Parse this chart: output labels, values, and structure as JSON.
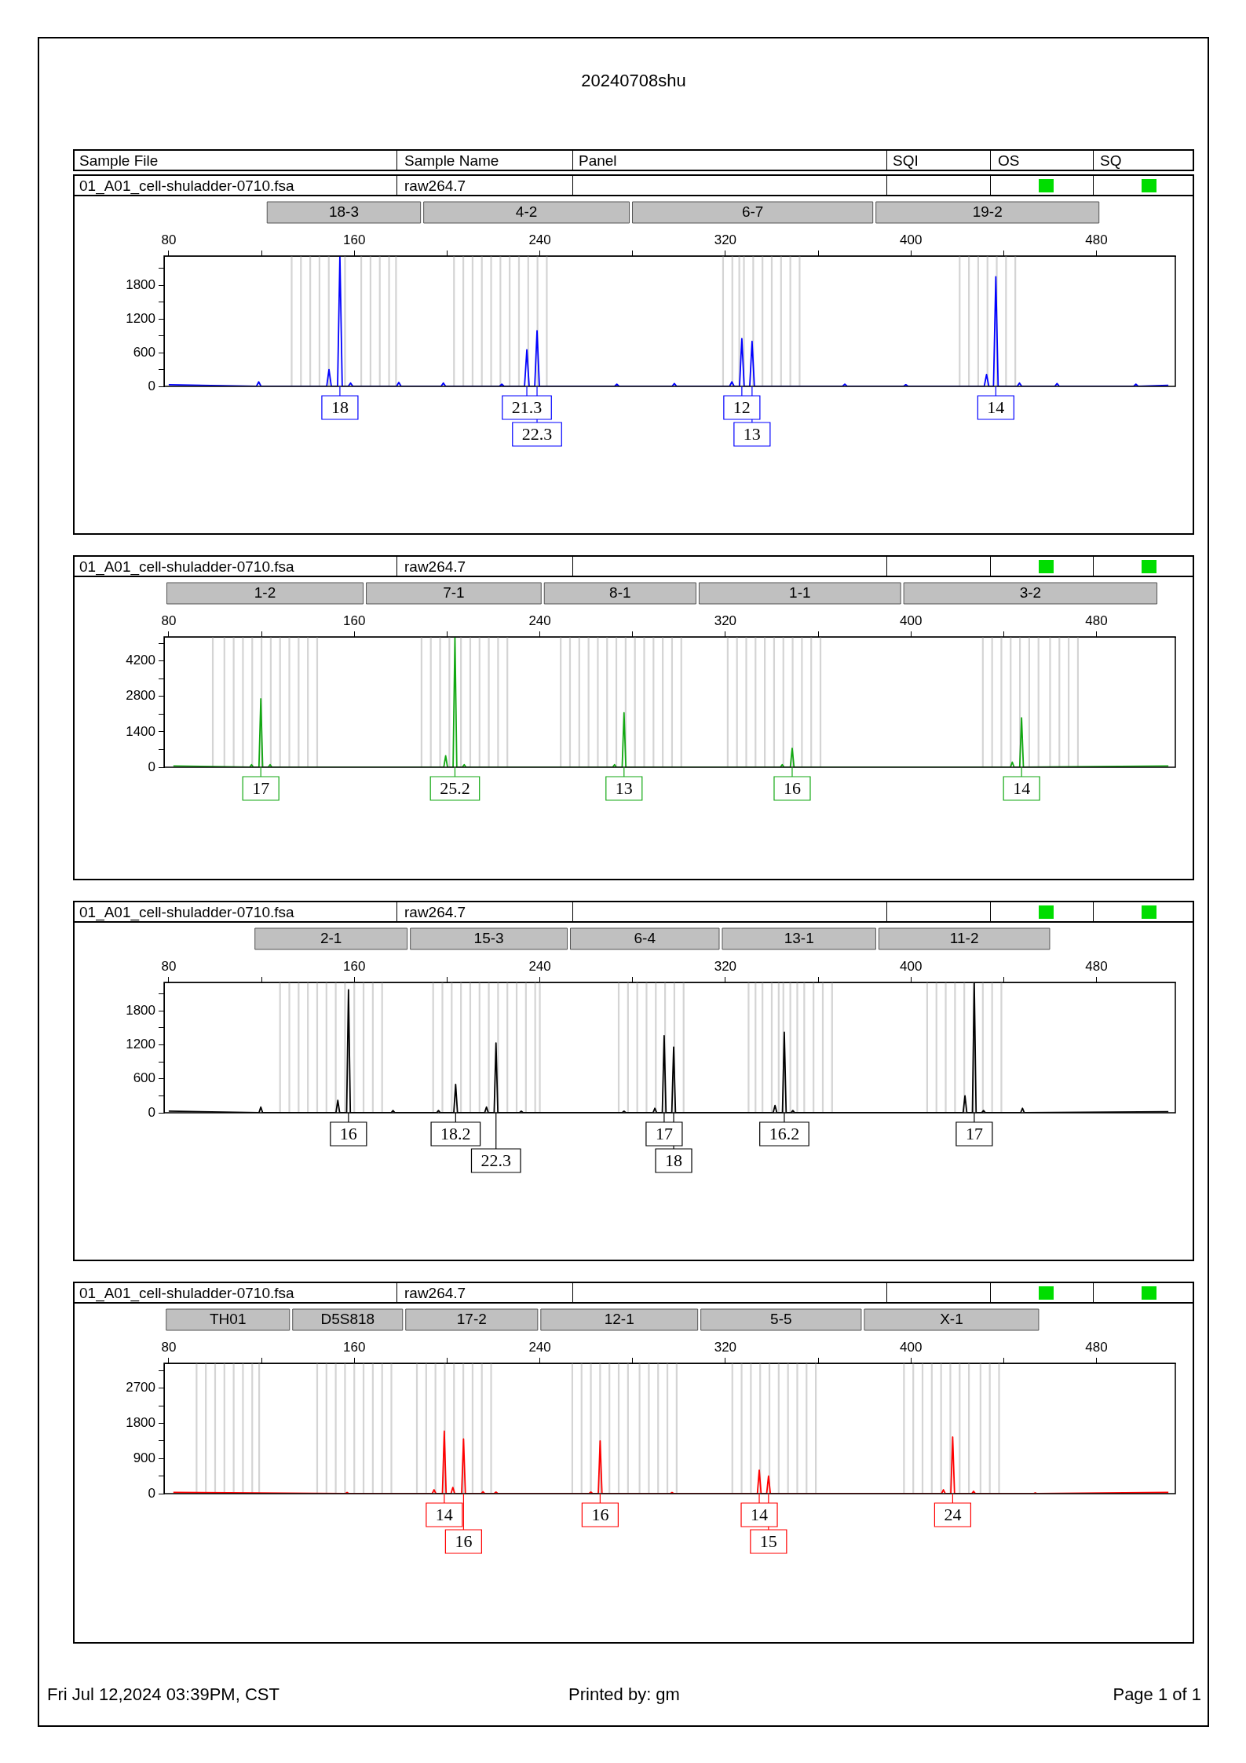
{
  "chart_data": [
    {
      "type": "other",
      "title": "20240708shu",
      "annotations": [
        "Sample File",
        "Sample Name",
        "Panel",
        "SQI",
        "OS",
        "SQ"
      ]
    },
    {
      "type": "line",
      "xlim": [
        78,
        514
      ],
      "ylim": [
        0,
        2320
      ],
      "xticks": [
        80,
        {
          "value": 120,
          "label": null
        },
        160,
        {
          "value": 200,
          "label": null
        },
        240,
        {
          "value": 280,
          "label": null
        },
        320,
        {
          "value": 360,
          "label": null
        },
        400,
        {
          "value": 440,
          "label": null
        },
        480
      ],
      "yticks": [
        0,
        {
          "value": 300,
          "label": null
        },
        600,
        {
          "value": 900,
          "label": null
        },
        1200,
        {
          "value": 1500,
          "label": null
        },
        1800,
        {
          "value": 2100,
          "label": null
        }
      ],
      "series": [
        {
          "color": "#0000ff",
          "x": [
            80,
            117.8,
            118.8,
            119.8,
            148.1,
            149.1,
            150.1,
            152.8,
            153.8,
            154.8,
            157.4,
            158.4,
            159.4,
            178.2,
            179.2,
            180.2,
            197.4,
            198.4,
            199.4,
            222.6,
            223.6,
            224.6,
            233.4,
            234.4,
            235.4,
            237.8,
            238.8,
            239.8,
            272.2,
            273.2,
            274.2,
            297,
            298,
            299,
            321.8,
            322.8,
            323.8,
            326.1,
            327.1,
            328.1,
            330.5,
            331.5,
            332.5,
            370.5,
            371.5,
            372.5,
            396.8,
            397.8,
            398.8,
            431.6,
            432.6,
            433.6,
            435.6,
            436.6,
            437.6,
            445.8,
            446.8,
            447.8,
            462,
            463,
            464,
            496,
            497,
            498,
            511
          ],
          "values": [
            30,
            0,
            80,
            0,
            0,
            300,
            0,
            0,
            2320,
            0,
            0,
            60,
            0,
            0,
            70,
            0,
            0,
            60,
            0,
            0,
            40,
            0,
            0,
            650,
            0,
            0,
            990,
            0,
            0,
            40,
            0,
            0,
            50,
            0,
            0,
            80,
            0,
            0,
            850,
            0,
            0,
            800,
            0,
            0,
            40,
            0,
            0,
            30,
            0,
            0,
            210,
            0,
            0,
            1950,
            0,
            0,
            60,
            0,
            0,
            50,
            0,
            0,
            40,
            0,
            20
          ]
        }
      ],
      "ref_lines": [
        {
          "axis": "x",
          "value": 133
        },
        {
          "axis": "x",
          "value": 137
        },
        {
          "axis": "x",
          "value": 141
        },
        {
          "axis": "x",
          "value": 145
        },
        {
          "axis": "x",
          "value": 149
        },
        {
          "axis": "x",
          "value": 156
        },
        {
          "axis": "x",
          "value": 163
        },
        {
          "axis": "x",
          "value": 167
        },
        {
          "axis": "x",
          "value": 171
        },
        {
          "axis": "x",
          "value": 175
        },
        {
          "axis": "x",
          "value": 178
        },
        {
          "axis": "x",
          "value": 203
        },
        {
          "axis": "x",
          "value": 207
        },
        {
          "axis": "x",
          "value": 211
        },
        {
          "axis": "x",
          "value": 215
        },
        {
          "axis": "x",
          "value": 219
        },
        {
          "axis": "x",
          "value": 223
        },
        {
          "axis": "x",
          "value": 227
        },
        {
          "axis": "x",
          "value": 231
        },
        {
          "axis": "x",
          "value": 235
        },
        {
          "axis": "x",
          "value": 239
        },
        {
          "axis": "x",
          "value": 243
        },
        {
          "axis": "x",
          "value": 319
        },
        {
          "axis": "x",
          "value": 323
        },
        {
          "axis": "x",
          "value": 326
        },
        {
          "axis": "x",
          "value": 328
        },
        {
          "axis": "x",
          "value": 332
        },
        {
          "axis": "x",
          "value": 336
        },
        {
          "axis": "x",
          "value": 340
        },
        {
          "axis": "x",
          "value": 344
        },
        {
          "axis": "x",
          "value": 348
        },
        {
          "axis": "x",
          "value": 352
        },
        {
          "axis": "x",
          "value": 421
        },
        {
          "axis": "x",
          "value": 425
        },
        {
          "axis": "x",
          "value": 429
        },
        {
          "axis": "x",
          "value": 433
        },
        {
          "axis": "x",
          "value": 437
        },
        {
          "axis": "x",
          "value": 441
        },
        {
          "axis": "x",
          "value": 445
        }
      ],
      "annotations": [
        "01_A01_cell-shuladder-0710.fsa",
        "raw264.7",
        "18-3",
        "4-2",
        "6-7",
        "19-2",
        {
          "text": "18",
          "x": 153.8
        },
        {
          "text": "21.3",
          "x": 234.4
        },
        {
          "text": "22.3",
          "x": 238.8
        },
        {
          "text": "12",
          "x": 327.1
        },
        {
          "text": "13",
          "x": 331.5
        },
        {
          "text": "14",
          "x": 436.6
        }
      ]
    },
    {
      "type": "line",
      "xlim": [
        78,
        514
      ],
      "ylim": [
        0,
        5150
      ],
      "xticks": [
        80,
        {
          "value": 120,
          "label": null
        },
        160,
        {
          "value": 200,
          "label": null
        },
        240,
        {
          "value": 280,
          "label": null
        },
        320,
        {
          "value": 360,
          "label": null
        },
        400,
        {
          "value": 440,
          "label": null
        },
        480
      ],
      "yticks": [
        0,
        {
          "value": 700,
          "label": null
        },
        1400,
        {
          "value": 2100,
          "label": null
        },
        2800,
        {
          "value": 3500,
          "label": null
        },
        4200,
        {
          "value": 4900,
          "label": null
        }
      ],
      "series": [
        {
          "color": "#12a812",
          "x": [
            82,
            114.9,
            115.7,
            116.5,
            118.9,
            119.7,
            120.5,
            122.9,
            123.7,
            124.5,
            198.6,
            199.4,
            200.2,
            202.6,
            203.4,
            204.2,
            206.6,
            207.4,
            208.2,
            271.4,
            272.2,
            273,
            275.5,
            276.3,
            277.1,
            343.7,
            344.5,
            345.3,
            348,
            348.8,
            349.6,
            442.9,
            443.7,
            444.5,
            446.9,
            447.7,
            448.5,
            511
          ],
          "values": [
            50,
            0,
            100,
            0,
            0,
            2700,
            0,
            0,
            100,
            0,
            0,
            450,
            0,
            0,
            5150,
            0,
            0,
            100,
            0,
            0,
            100,
            0,
            0,
            2150,
            0,
            0,
            100,
            0,
            0,
            750,
            0,
            0,
            200,
            0,
            0,
            1950,
            0,
            50
          ]
        }
      ],
      "ref_lines": [
        {
          "axis": "x",
          "value": 99
        },
        {
          "axis": "x",
          "value": 104
        },
        {
          "axis": "x",
          "value": 108
        },
        {
          "axis": "x",
          "value": 112
        },
        {
          "axis": "x",
          "value": 116
        },
        {
          "axis": "x",
          "value": 120
        },
        {
          "axis": "x",
          "value": 124
        },
        {
          "axis": "x",
          "value": 128
        },
        {
          "axis": "x",
          "value": 132
        },
        {
          "axis": "x",
          "value": 136
        },
        {
          "axis": "x",
          "value": 140
        },
        {
          "axis": "x",
          "value": 144
        },
        {
          "axis": "x",
          "value": 189
        },
        {
          "axis": "x",
          "value": 193
        },
        {
          "axis": "x",
          "value": 197
        },
        {
          "axis": "x",
          "value": 201
        },
        {
          "axis": "x",
          "value": 206
        },
        {
          "axis": "x",
          "value": 210
        },
        {
          "axis": "x",
          "value": 214
        },
        {
          "axis": "x",
          "value": 218
        },
        {
          "axis": "x",
          "value": 222
        },
        {
          "axis": "x",
          "value": 226
        },
        {
          "axis": "x",
          "value": 249
        },
        {
          "axis": "x",
          "value": 253
        },
        {
          "axis": "x",
          "value": 257
        },
        {
          "axis": "x",
          "value": 261
        },
        {
          "axis": "x",
          "value": 265
        },
        {
          "axis": "x",
          "value": 269
        },
        {
          "axis": "x",
          "value": 273
        },
        {
          "axis": "x",
          "value": 277
        },
        {
          "axis": "x",
          "value": 281
        },
        {
          "axis": "x",
          "value": 285
        },
        {
          "axis": "x",
          "value": 289
        },
        {
          "axis": "x",
          "value": 293
        },
        {
          "axis": "x",
          "value": 297
        },
        {
          "axis": "x",
          "value": 301
        },
        {
          "axis": "x",
          "value": 321
        },
        {
          "axis": "x",
          "value": 325
        },
        {
          "axis": "x",
          "value": 329
        },
        {
          "axis": "x",
          "value": 333
        },
        {
          "axis": "x",
          "value": 337
        },
        {
          "axis": "x",
          "value": 341
        },
        {
          "axis": "x",
          "value": 345
        },
        {
          "axis": "x",
          "value": 349
        },
        {
          "axis": "x",
          "value": 353
        },
        {
          "axis": "x",
          "value": 357
        },
        {
          "axis": "x",
          "value": 361
        },
        {
          "axis": "x",
          "value": 431
        },
        {
          "axis": "x",
          "value": 435
        },
        {
          "axis": "x",
          "value": 439
        },
        {
          "axis": "x",
          "value": 443
        },
        {
          "axis": "x",
          "value": 447
        },
        {
          "axis": "x",
          "value": 451
        },
        {
          "axis": "x",
          "value": 455
        },
        {
          "axis": "x",
          "value": 460
        },
        {
          "axis": "x",
          "value": 464
        },
        {
          "axis": "x",
          "value": 468
        },
        {
          "axis": "x",
          "value": 472
        }
      ],
      "annotations": [
        "01_A01_cell-shuladder-0710.fsa",
        "raw264.7",
        "1-2",
        "7-1",
        "8-1",
        "1-1",
        "3-2",
        {
          "text": "17",
          "x": 119.7
        },
        {
          "text": "25.2",
          "x": 203.4
        },
        {
          "text": "13",
          "x": 276.3
        },
        {
          "text": "16",
          "x": 348.8
        },
        {
          "text": "14",
          "x": 447.7
        }
      ]
    },
    {
      "type": "line",
      "xlim": [
        78,
        514
      ],
      "ylim": [
        0,
        2300
      ],
      "xticks": [
        80,
        {
          "value": 120,
          "label": null
        },
        160,
        {
          "value": 200,
          "label": null
        },
        240,
        {
          "value": 280,
          "label": null
        },
        320,
        {
          "value": 360,
          "label": null
        },
        400,
        {
          "value": 440,
          "label": null
        },
        480
      ],
      "yticks": [
        0,
        {
          "value": 300,
          "label": null
        },
        600,
        {
          "value": 900,
          "label": null
        },
        1200,
        {
          "value": 1500,
          "label": null
        },
        1800,
        {
          "value": 2100,
          "label": null
        }
      ],
      "series": [
        {
          "color": "#000000",
          "x": [
            80,
            118.9,
            119.7,
            120.5,
            152.1,
            152.9,
            153.7,
            156.7,
            157.5,
            158.3,
            175.9,
            176.7,
            177.5,
            195.5,
            196.3,
            197.1,
            202.9,
            203.7,
            204.5,
            216.2,
            217,
            217.8,
            220.3,
            221.1,
            221.9,
            231.2,
            232,
            232.8,
            275.5,
            276.3,
            277.1,
            288.8,
            289.6,
            290.4,
            292.8,
            293.6,
            294.4,
            296.9,
            297.7,
            298.5,
            340.6,
            341.4,
            342.2,
            344.6,
            345.4,
            346.2,
            348.3,
            349.1,
            349.9,
            422.5,
            423.3,
            424.1,
            426.5,
            427.3,
            428.1,
            430.5,
            431.3,
            432.1,
            447.3,
            448.1,
            448.9,
            511
          ],
          "values": [
            30,
            0,
            100,
            0,
            0,
            220,
            0,
            0,
            2170,
            0,
            0,
            40,
            0,
            0,
            40,
            0,
            0,
            500,
            0,
            0,
            100,
            0,
            0,
            1230,
            0,
            0,
            30,
            0,
            0,
            30,
            0,
            0,
            80,
            0,
            0,
            1360,
            0,
            0,
            1160,
            0,
            0,
            130,
            0,
            0,
            1420,
            0,
            0,
            40,
            0,
            0,
            300,
            0,
            0,
            2300,
            0,
            0,
            40,
            0,
            0,
            80,
            0,
            20
          ]
        }
      ],
      "ref_lines": [
        {
          "axis": "x",
          "value": 128
        },
        {
          "axis": "x",
          "value": 132
        },
        {
          "axis": "x",
          "value": 136
        },
        {
          "axis": "x",
          "value": 140
        },
        {
          "axis": "x",
          "value": 144
        },
        {
          "axis": "x",
          "value": 148
        },
        {
          "axis": "x",
          "value": 152
        },
        {
          "axis": "x",
          "value": 156
        },
        {
          "axis": "x",
          "value": 160
        },
        {
          "axis": "x",
          "value": 164
        },
        {
          "axis": "x",
          "value": 168
        },
        {
          "axis": "x",
          "value": 172
        },
        {
          "axis": "x",
          "value": 194
        },
        {
          "axis": "x",
          "value": 198
        },
        {
          "axis": "x",
          "value": 202
        },
        {
          "axis": "x",
          "value": 206
        },
        {
          "axis": "x",
          "value": 210
        },
        {
          "axis": "x",
          "value": 214
        },
        {
          "axis": "x",
          "value": 218
        },
        {
          "axis": "x",
          "value": 222
        },
        {
          "axis": "x",
          "value": 226
        },
        {
          "axis": "x",
          "value": 230
        },
        {
          "axis": "x",
          "value": 234
        },
        {
          "axis": "x",
          "value": 238
        },
        {
          "axis": "x",
          "value": 240
        },
        {
          "axis": "x",
          "value": 274
        },
        {
          "axis": "x",
          "value": 278
        },
        {
          "axis": "x",
          "value": 282
        },
        {
          "axis": "x",
          "value": 286
        },
        {
          "axis": "x",
          "value": 290
        },
        {
          "axis": "x",
          "value": 294
        },
        {
          "axis": "x",
          "value": 298
        },
        {
          "axis": "x",
          "value": 302
        },
        {
          "axis": "x",
          "value": 330
        },
        {
          "axis": "x",
          "value": 333
        },
        {
          "axis": "x",
          "value": 336
        },
        {
          "axis": "x",
          "value": 340
        },
        {
          "axis": "x",
          "value": 343
        },
        {
          "axis": "x",
          "value": 345
        },
        {
          "axis": "x",
          "value": 348
        },
        {
          "axis": "x",
          "value": 351
        },
        {
          "axis": "x",
          "value": 354
        },
        {
          "axis": "x",
          "value": 358
        },
        {
          "axis": "x",
          "value": 362
        },
        {
          "axis": "x",
          "value": 366
        },
        {
          "axis": "x",
          "value": 407
        },
        {
          "axis": "x",
          "value": 411
        },
        {
          "axis": "x",
          "value": 415
        },
        {
          "axis": "x",
          "value": 419
        },
        {
          "axis": "x",
          "value": 423
        },
        {
          "axis": "x",
          "value": 427
        },
        {
          "axis": "x",
          "value": 431
        },
        {
          "axis": "x",
          "value": 435
        },
        {
          "axis": "x",
          "value": 439
        }
      ],
      "annotations": [
        "01_A01_cell-shuladder-0710.fsa",
        "raw264.7",
        "2-1",
        "15-3",
        "6-4",
        "13-1",
        "11-2",
        {
          "text": "16",
          "x": 157.5
        },
        {
          "text": "18.2",
          "x": 203.7
        },
        {
          "text": "22.3",
          "x": 221.1
        },
        {
          "text": "17",
          "x": 293.6
        },
        {
          "text": "18",
          "x": 297.7
        },
        {
          "text": "16.2",
          "x": 345.4
        },
        {
          "text": "17",
          "x": 427.3
        }
      ]
    },
    {
      "type": "line",
      "xlim": [
        78,
        514
      ],
      "ylim": [
        0,
        3340
      ],
      "xticks": [
        80,
        {
          "value": 120,
          "label": null
        },
        160,
        {
          "value": 200,
          "label": null
        },
        240,
        {
          "value": 280,
          "label": null
        },
        320,
        {
          "value": 360,
          "label": null
        },
        400,
        {
          "value": 440,
          "label": null
        },
        480
      ],
      "yticks": [
        0,
        {
          "value": 450,
          "label": null
        },
        900,
        {
          "value": 1350,
          "label": null
        },
        1800,
        {
          "value": 2250,
          "label": null
        },
        2700,
        {
          "value": 3150,
          "label": null
        }
      ],
      "series": [
        {
          "color": "#ff0000",
          "x": [
            82,
            156.1,
            156.9,
            157.7,
            193.6,
            194.4,
            195.2,
            198,
            198.8,
            199.6,
            201.7,
            202.5,
            203.3,
            206.3,
            207.1,
            207.9,
            214.7,
            215.5,
            216.3,
            220.3,
            221.1,
            221.9,
            261.2,
            262,
            262.8,
            265.2,
            266,
            266.8,
            296.2,
            297,
            297.8,
            333.8,
            334.6,
            335.4,
            337.8,
            338.6,
            339.4,
            413.2,
            414,
            414.8,
            417.2,
            418,
            418.8,
            426.2,
            427,
            427.8,
            452.8,
            453.6,
            454.4,
            511
          ],
          "values": [
            30,
            0,
            30,
            0,
            0,
            100,
            0,
            0,
            1600,
            0,
            0,
            160,
            0,
            0,
            1400,
            0,
            0,
            50,
            0,
            0,
            40,
            0,
            0,
            40,
            0,
            0,
            1350,
            0,
            0,
            30,
            0,
            0,
            600,
            0,
            0,
            450,
            0,
            0,
            100,
            0,
            0,
            1450,
            0,
            0,
            60,
            0,
            0,
            20,
            0,
            30
          ]
        }
      ],
      "ref_lines": [
        {
          "axis": "x",
          "value": 92
        },
        {
          "axis": "x",
          "value": 96
        },
        {
          "axis": "x",
          "value": 100
        },
        {
          "axis": "x",
          "value": 104
        },
        {
          "axis": "x",
          "value": 108
        },
        {
          "axis": "x",
          "value": 112
        },
        {
          "axis": "x",
          "value": 116
        },
        {
          "axis": "x",
          "value": 119
        },
        {
          "axis": "x",
          "value": 144
        },
        {
          "axis": "x",
          "value": 148
        },
        {
          "axis": "x",
          "value": 152
        },
        {
          "axis": "x",
          "value": 156
        },
        {
          "axis": "x",
          "value": 160
        },
        {
          "axis": "x",
          "value": 164
        },
        {
          "axis": "x",
          "value": 168
        },
        {
          "axis": "x",
          "value": 172
        },
        {
          "axis": "x",
          "value": 176
        },
        {
          "axis": "x",
          "value": 187
        },
        {
          "axis": "x",
          "value": 191
        },
        {
          "axis": "x",
          "value": 195
        },
        {
          "axis": "x",
          "value": 199
        },
        {
          "axis": "x",
          "value": 203
        },
        {
          "axis": "x",
          "value": 207
        },
        {
          "axis": "x",
          "value": 211
        },
        {
          "axis": "x",
          "value": 215
        },
        {
          "axis": "x",
          "value": 219
        },
        {
          "axis": "x",
          "value": 254
        },
        {
          "axis": "x",
          "value": 258
        },
        {
          "axis": "x",
          "value": 262
        },
        {
          "axis": "x",
          "value": 266
        },
        {
          "axis": "x",
          "value": 270
        },
        {
          "axis": "x",
          "value": 274
        },
        {
          "axis": "x",
          "value": 278
        },
        {
          "axis": "x",
          "value": 283
        },
        {
          "axis": "x",
          "value": 287
        },
        {
          "axis": "x",
          "value": 291
        },
        {
          "axis": "x",
          "value": 295
        },
        {
          "axis": "x",
          "value": 299
        },
        {
          "axis": "x",
          "value": 323
        },
        {
          "axis": "x",
          "value": 327
        },
        {
          "axis": "x",
          "value": 331
        },
        {
          "axis": "x",
          "value": 335
        },
        {
          "axis": "x",
          "value": 339
        },
        {
          "axis": "x",
          "value": 343
        },
        {
          "axis": "x",
          "value": 347
        },
        {
          "axis": "x",
          "value": 351
        },
        {
          "axis": "x",
          "value": 355
        },
        {
          "axis": "x",
          "value": 359
        },
        {
          "axis": "x",
          "value": 397
        },
        {
          "axis": "x",
          "value": 401
        },
        {
          "axis": "x",
          "value": 405
        },
        {
          "axis": "x",
          "value": 409
        },
        {
          "axis": "x",
          "value": 413
        },
        {
          "axis": "x",
          "value": 417
        },
        {
          "axis": "x",
          "value": 421
        },
        {
          "axis": "x",
          "value": 425
        },
        {
          "axis": "x",
          "value": 430
        },
        {
          "axis": "x",
          "value": 434
        },
        {
          "axis": "x",
          "value": 438
        }
      ],
      "annotations": [
        "01_A01_cell-shuladder-0710.fsa",
        "raw264.7",
        "TH01",
        "D5S818",
        "17-2",
        "12-1",
        "5-5",
        "X-1",
        {
          "text": "14",
          "x": 198.8
        },
        {
          "text": "16",
          "x": 207.1
        },
        {
          "text": "16",
          "x": 266
        },
        {
          "text": "14",
          "x": 334.6
        },
        {
          "text": "15",
          "x": 338.6
        },
        {
          "text": "24",
          "x": 418
        }
      ]
    },
    {
      "type": "other",
      "annotations": [
        "Fri Jul 12,2024 03:39PM, CST",
        "Printed by: gm",
        "Page 1 of 1"
      ]
    }
  ]
}
